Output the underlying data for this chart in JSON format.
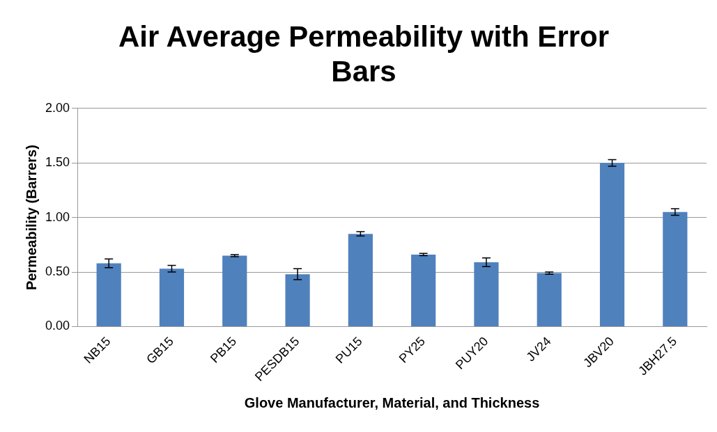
{
  "chart_data": {
    "type": "bar",
    "title": "Air Average Permeability with Error Bars",
    "xlabel": "Glove Manufacturer, Material, and Thickness",
    "ylabel": "Permeability (Barrers)",
    "categories": [
      "NB15",
      "GB15",
      "PB15",
      "PESDB15",
      "PU15",
      "PY25",
      "PUY20",
      "JV24",
      "JBV20",
      "JBH27.5"
    ],
    "values": [
      0.58,
      0.53,
      0.65,
      0.48,
      0.85,
      0.66,
      0.59,
      0.49,
      1.5,
      1.05
    ],
    "errors": [
      0.04,
      0.03,
      0.01,
      0.05,
      0.02,
      0.01,
      0.04,
      0.01,
      0.03,
      0.03
    ],
    "color": "#4f81bd",
    "ylim": [
      0,
      2
    ],
    "yticks": [
      {
        "value": 0,
        "label": "0.00"
      },
      {
        "value": 0.5,
        "label": "0.50"
      },
      {
        "value": 1,
        "label": "1.00"
      },
      {
        "value": 1.5,
        "label": "1.50"
      },
      {
        "value": 2,
        "label": "2.00"
      }
    ],
    "grid": "y",
    "legend": false
  }
}
